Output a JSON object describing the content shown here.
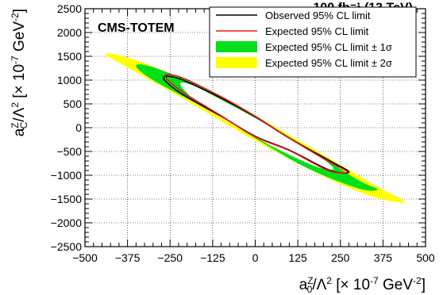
{
  "chart_data": {
    "type": "contour",
    "experiment_label": "CMS-TOTEM",
    "lumi_label": "100 fb⁻¹ (13 TeV)",
    "xlabel": "a₀ᵣ/Λ² [× 10⁻⁷ GeV⁻²]",
    "xlabel_parts": {
      "a": "a",
      "sup": "Z",
      "sub": "0",
      "rest1": "/Λ",
      "sq": "2",
      "rest2": " [× 10",
      "exp": "-7",
      "rest3": " GeV",
      "exp2": "-2",
      "rest4": "]"
    },
    "ylabel_parts": {
      "a": "a",
      "sup": "Z",
      "sub": "C",
      "rest1": "/Λ",
      "sq": "2",
      "rest2": " [× 10",
      "exp": "-7",
      "rest3": " GeV",
      "exp2": "-2",
      "rest4": "]"
    },
    "xlim": [
      -500,
      500
    ],
    "ylim": [
      -2500,
      2500
    ],
    "xticks": [
      -500,
      -375,
      -250,
      -125,
      0,
      125,
      250,
      375,
      500
    ],
    "xtick_labels": [
      "−500",
      "−375",
      "−250",
      "−125",
      "0",
      "125",
      "250",
      "375",
      "500"
    ],
    "yticks": [
      -2500,
      -2000,
      -1500,
      -1000,
      -500,
      0,
      500,
      1000,
      1500,
      2000,
      2500
    ],
    "ytick_labels": [
      "−2500",
      "−2000",
      "−1500",
      "−1000",
      "−500",
      "0",
      "500",
      "1000",
      "1500",
      "2000",
      "2500"
    ],
    "grid": true,
    "legend_position": "top-right",
    "legend": [
      {
        "label": "Observed 95% CL limit",
        "kind": "line",
        "color": "#000000"
      },
      {
        "label": "Expected 95% CL limit",
        "kind": "line",
        "color": "#e8161c"
      },
      {
        "label": "Expected 95% CL limit ± 1σ",
        "kind": "fill",
        "color": "#00e01a"
      },
      {
        "label": "Expected 95% CL limit ± 2σ",
        "kind": "fill",
        "color": "#ffff00"
      }
    ],
    "series": [
      {
        "name": "Expected 95% CL limit ± 2σ",
        "kind": "ellipse-band",
        "color": "#ffff00",
        "outer": [
          [
            -440,
            1550
          ],
          [
            -350,
            1420
          ],
          [
            -200,
            970
          ],
          [
            0,
            250
          ],
          [
            200,
            -570
          ],
          [
            350,
            -1200
          ],
          [
            440,
            -1560
          ],
          [
            350,
            -1460
          ],
          [
            200,
            -1020
          ],
          [
            0,
            -270
          ],
          [
            -200,
            560
          ],
          [
            -350,
            1170
          ]
        ]
      },
      {
        "name": "Expected 95% CL limit ± 1σ",
        "kind": "ellipse-band",
        "color": "#00e01a",
        "outer": [
          [
            -350,
            1300
          ],
          [
            -300,
            1270
          ],
          [
            -150,
            830
          ],
          [
            0,
            230
          ],
          [
            150,
            -410
          ],
          [
            300,
            -1090
          ],
          [
            360,
            -1300
          ],
          [
            300,
            -1270
          ],
          [
            150,
            -840
          ],
          [
            0,
            -220
          ],
          [
            -150,
            420
          ],
          [
            -300,
            1000
          ]
        ]
      },
      {
        "name": "Expected 95% CL limit ± 1σ inner",
        "kind": "ellipse-band",
        "color": "#ffffff",
        "outer": [
          [
            -220,
            920
          ],
          [
            -180,
            880
          ],
          [
            -80,
            510
          ],
          [
            0,
            200
          ],
          [
            100,
            -210
          ],
          [
            180,
            -560
          ],
          [
            230,
            -860
          ],
          [
            180,
            -820
          ],
          [
            80,
            -500
          ],
          [
            0,
            -200
          ],
          [
            -100,
            210
          ],
          [
            -180,
            590
          ]
        ]
      },
      {
        "name": "Observed 95% CL limit",
        "kind": "line",
        "color": "#000000",
        "outer": [
          [
            -270,
            1050
          ],
          [
            -220,
            1020
          ],
          [
            -100,
            620
          ],
          [
            0,
            230
          ],
          [
            100,
            -220
          ],
          [
            220,
            -700
          ],
          [
            275,
            -930
          ],
          [
            220,
            -900
          ],
          [
            100,
            -470
          ],
          [
            0,
            -180
          ],
          [
            -100,
            240
          ],
          [
            -220,
            730
          ]
        ]
      },
      {
        "name": "Expected 95% CL limit",
        "kind": "line",
        "color": "#e8161c",
        "outer": [
          [
            -265,
            1090
          ],
          [
            -215,
            1050
          ],
          [
            -100,
            650
          ],
          [
            0,
            240
          ],
          [
            100,
            -220
          ],
          [
            215,
            -710
          ],
          [
            270,
            -930
          ],
          [
            215,
            -900
          ],
          [
            100,
            -480
          ],
          [
            0,
            -190
          ],
          [
            -100,
            250
          ],
          [
            -215,
            760
          ]
        ]
      }
    ]
  }
}
